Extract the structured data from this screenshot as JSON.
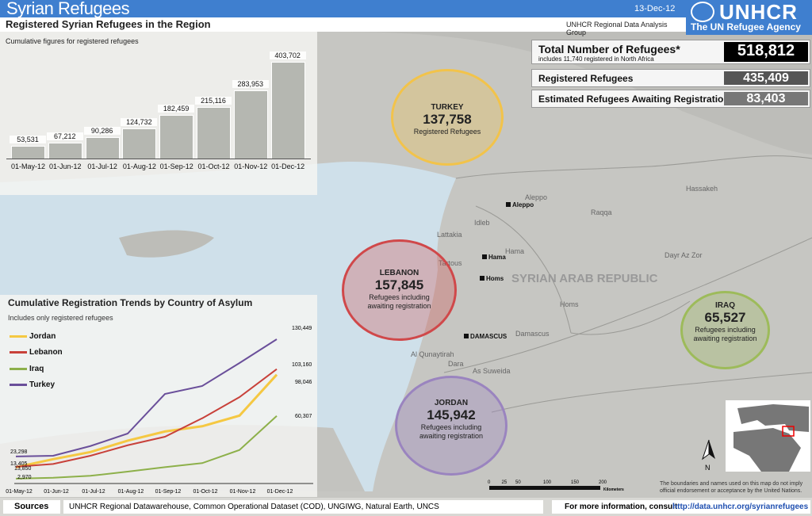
{
  "header": {
    "title": "Syrian Refugees",
    "date": "13-Dec-12",
    "logo_text": "UNHCR",
    "logo_sub": "The UN Refugee Agency",
    "subtitle": "Registered Syrian Refugees in the Region",
    "group": "UNHCR Regional Data Analysis Group"
  },
  "stats": {
    "total_label": "Total Number of Refugees*",
    "total_note": "includes 11,740 registered in North Africa",
    "total_value": "518,812",
    "registered_label": "Registered Refugees",
    "registered_value": "435,409",
    "awaiting_label": "Estimated Refugees Awaiting Registration",
    "awaiting_value": "83,403"
  },
  "chart_data": [
    {
      "type": "bar",
      "title": "Registered Syrian Refugees in the Region",
      "subtitle": "Cumulative figures for registered refugees",
      "categories": [
        "01-May-12",
        "01-Jun-12",
        "01-Jul-12",
        "01-Aug-12",
        "01-Sep-12",
        "01-Oct-12",
        "01-Nov-12",
        "01-Dec-12"
      ],
      "values": [
        53531,
        67212,
        90286,
        124732,
        182459,
        215116,
        283953,
        403702
      ],
      "labels": [
        "53,531",
        "67,212",
        "90,286",
        "124,732",
        "182,459",
        "215,116",
        "283,953",
        "403,702"
      ],
      "color": "#b5b7b1"
    },
    {
      "type": "line",
      "title": "Cumulative Registration Trends by Country of Asylum",
      "subtitle": "Includes only registered refugees",
      "categories": [
        "01-May-12",
        "01-Jun-12",
        "01-Jul-12",
        "01-Aug-12",
        "01-Sep-12",
        "01-Oct-12",
        "01-Nov-12",
        "01-Dec-12"
      ],
      "legend": "top-left",
      "series": [
        {
          "name": "Jordan",
          "color": "#f5c842",
          "values": [
            13405,
            20800,
            27300,
            37700,
            46100,
            50900,
            60600,
            98046
          ]
        },
        {
          "name": "Lebanon",
          "color": "#c8413a",
          "values": [
            13850,
            16400,
            23900,
            33500,
            41300,
            58200,
            77500,
            103160
          ]
        },
        {
          "name": "Iraq",
          "color": "#8db04a",
          "values": [
            2970,
            3800,
            5600,
            9400,
            13500,
            17200,
            29200,
            60307
          ]
        },
        {
          "name": "Turkey",
          "color": "#6a4f9a",
          "values": [
            23298,
            23900,
            32800,
            44200,
            80400,
            87700,
            108700,
            130449
          ]
        }
      ],
      "annotations": [
        "23,298",
        "13,405",
        "13,850",
        "2,970",
        "130,449",
        "103,160",
        "98,046",
        "60,307"
      ]
    }
  ],
  "map": {
    "country": "SYRIAN ARAB REPUBLIC",
    "regions": [
      "Aleppo",
      "Hassakeh",
      "Raqqa",
      "Idleb",
      "Lattakia",
      "Hama",
      "Tartous",
      "Dayr Az Zor",
      "Homs",
      "Damascus",
      "Al Qunaytirah",
      "Dara",
      "As Suweida"
    ],
    "cities": [
      "Aleppo",
      "Hama",
      "Homs",
      "DAMASCUS"
    ],
    "circles": [
      {
        "name": "TURKEY",
        "value": "137,758",
        "desc": "Registered Refugees",
        "color": "#f2c34a"
      },
      {
        "name": "LEBANON",
        "value": "157,845",
        "desc": "Refugees including awaiting registration",
        "color": "#d0484a"
      },
      {
        "name": "IRAQ",
        "value": "65,527",
        "desc": "Refugees including awaiting registration",
        "color": "#9dbb5a"
      },
      {
        "name": "JORDAN",
        "value": "145,942",
        "desc": "Refugees including awaiting registration",
        "color": "#9a84bf"
      }
    ],
    "scale": [
      "0",
      "25",
      "50",
      "100",
      "150",
      "200"
    ],
    "scale_unit": "Kilometers",
    "north": "N",
    "disclaimer": "The boundaries and names used on this map do not imply official endorsement or acceptance by the United Nations."
  },
  "footer": {
    "sources_label": "Sources",
    "sources": "UNHCR Regional Datawarehouse, Common Operational Dataset (COD), UNGIWG, Natural Earth, UNCS",
    "more_info": "For more information, consult",
    "link": "http://data.unhcr.org/syrianrefugees"
  }
}
